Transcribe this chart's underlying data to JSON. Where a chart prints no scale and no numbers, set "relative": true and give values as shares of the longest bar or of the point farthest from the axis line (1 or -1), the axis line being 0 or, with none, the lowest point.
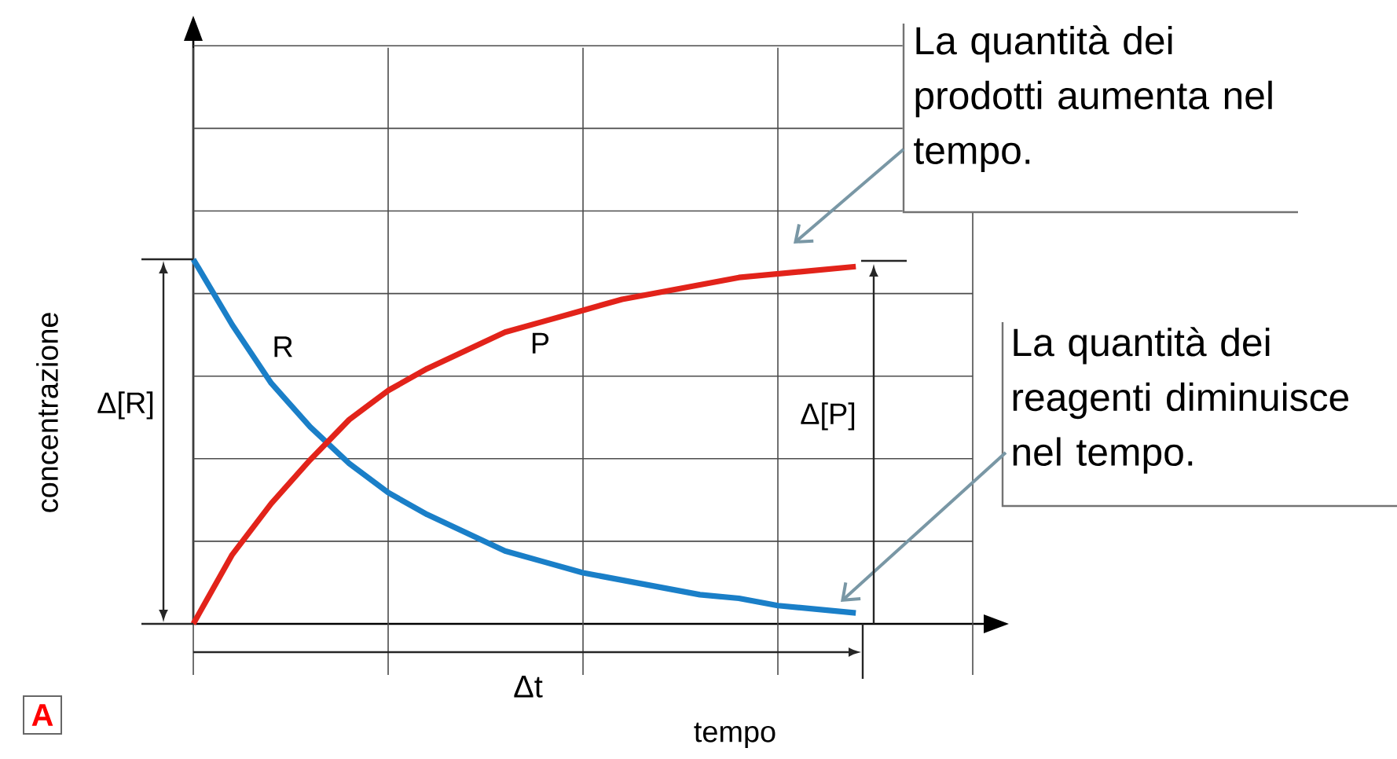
{
  "chart_data": {
    "type": "line",
    "relative": true,
    "xlabel": "tempo",
    "ylabel": "concentrazione",
    "grid": true,
    "marker": "none",
    "line_style": "solid",
    "categories": [
      null,
      null,
      null,
      null,
      null,
      null,
      null,
      null,
      null,
      null,
      null,
      null,
      null,
      null,
      null,
      null,
      null,
      null,
      null,
      null,
      null
    ],
    "series": [
      {
        "name": "R",
        "color": "#1a7fc8",
        "values": [
          1.0,
          0.82,
          0.66,
          0.54,
          0.44,
          0.36,
          0.3,
          0.25,
          0.2,
          0.17,
          0.14,
          0.12,
          0.1,
          0.08,
          0.07,
          0.05,
          0.04,
          0.03,
          null,
          null,
          null
        ]
      },
      {
        "name": "P",
        "color": "#e2231a",
        "values": [
          0.0,
          0.19,
          0.33,
          0.45,
          0.56,
          0.64,
          0.7,
          0.75,
          0.8,
          0.83,
          0.86,
          0.89,
          0.91,
          0.93,
          0.95,
          0.96,
          0.97,
          0.98,
          null,
          null,
          null
        ]
      }
    ],
    "annotations": [
      "La quantità dei prodotti aumenta nel tempo.",
      "La quantità dei reagenti diminuisce nel tempo.",
      "Δ[R]",
      "Δ[P]",
      "Δt",
      "A"
    ]
  }
}
